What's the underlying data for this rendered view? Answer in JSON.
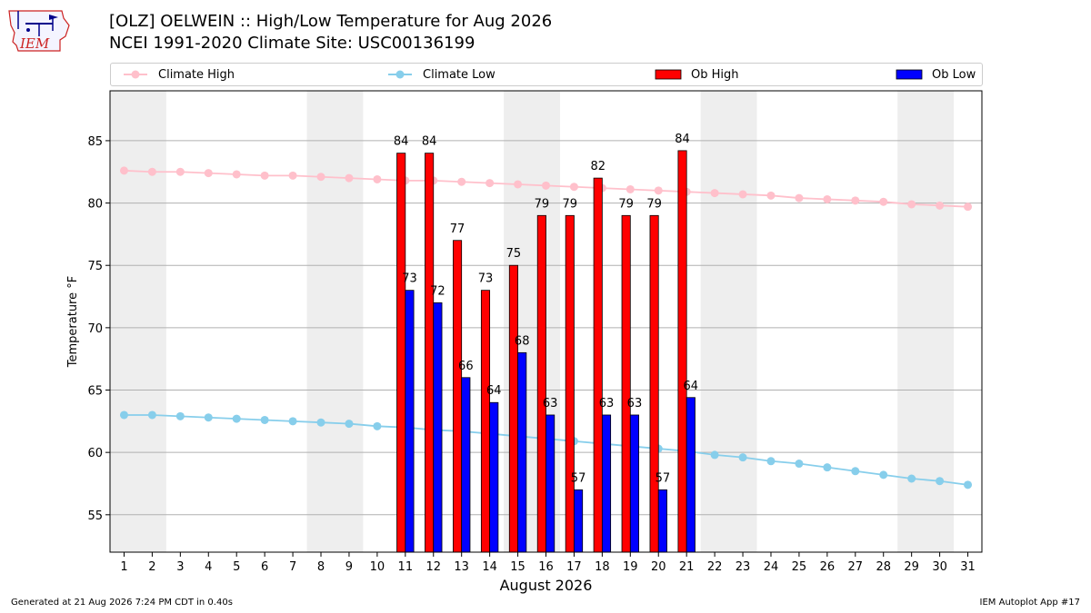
{
  "header": {
    "logo_text": "IEM",
    "title_line1": "[OLZ] OELWEIN :: High/Low Temperature for Aug 2026",
    "title_line2": "NCEI 1991-2020 Climate Site: USC00136199"
  },
  "legend": {
    "climate_high": "Climate High",
    "climate_low": "Climate Low",
    "ob_high": "Ob High",
    "ob_low": "Ob Low"
  },
  "colors": {
    "climate_high": "#ffc0cb",
    "climate_low": "#87ceeb",
    "ob_high": "#ff0000",
    "ob_low": "#0000ff",
    "weekend_shade": "#eeeeee",
    "grid": "#b0b0b0"
  },
  "footer": {
    "left": "Generated at 21 Aug 2026 7:24 PM CDT in 0.40s",
    "right": "IEM Autoplot App #17"
  },
  "chart_data": {
    "type": "bar",
    "xlabel": "August 2026",
    "ylabel": "Temperature °F",
    "xlim": [
      0.5,
      31.5
    ],
    "ylim": [
      52,
      89
    ],
    "yticks": [
      55,
      60,
      65,
      70,
      75,
      80,
      85
    ],
    "grid": true,
    "legend_position": "top",
    "shaded_day_ranges": [
      [
        1,
        2
      ],
      [
        8,
        9
      ],
      [
        15,
        16
      ],
      [
        22,
        23
      ],
      [
        29,
        30
      ]
    ],
    "days": [
      1,
      2,
      3,
      4,
      5,
      6,
      7,
      8,
      9,
      10,
      11,
      12,
      13,
      14,
      15,
      16,
      17,
      18,
      19,
      20,
      21,
      22,
      23,
      24,
      25,
      26,
      27,
      28,
      29,
      30,
      31
    ],
    "series": [
      {
        "name": "Climate High",
        "kind": "line",
        "values": [
          82.6,
          82.5,
          82.5,
          82.4,
          82.3,
          82.2,
          82.2,
          82.1,
          82.0,
          81.9,
          81.8,
          81.8,
          81.7,
          81.6,
          81.5,
          81.4,
          81.3,
          81.2,
          81.1,
          81.0,
          80.9,
          80.8,
          80.7,
          80.6,
          80.4,
          80.3,
          80.2,
          80.1,
          79.9,
          79.8,
          79.7
        ]
      },
      {
        "name": "Climate Low",
        "kind": "line",
        "values": [
          63.0,
          63.0,
          62.9,
          62.8,
          62.7,
          62.6,
          62.5,
          62.4,
          62.3,
          62.1,
          62.0,
          61.8,
          61.7,
          61.5,
          61.3,
          61.1,
          60.9,
          60.7,
          60.5,
          60.3,
          60.1,
          59.8,
          59.6,
          59.3,
          59.1,
          58.8,
          58.5,
          58.2,
          57.9,
          57.7,
          57.4
        ]
      },
      {
        "name": "Ob High",
        "kind": "bar",
        "days": [
          11,
          12,
          13,
          14,
          15,
          16,
          17,
          18,
          19,
          20,
          21
        ],
        "values": [
          84,
          84,
          77,
          73,
          75,
          79,
          79,
          82,
          79,
          79,
          84.2
        ],
        "labels": [
          "84",
          "84",
          "77",
          "73",
          "75",
          "79",
          "79",
          "82",
          "79",
          "79",
          "84"
        ]
      },
      {
        "name": "Ob Low",
        "kind": "bar",
        "days": [
          11,
          12,
          13,
          14,
          15,
          16,
          17,
          18,
          19,
          20,
          21
        ],
        "values": [
          73,
          72,
          66,
          64,
          68,
          63,
          57,
          63,
          63,
          57,
          64.4
        ],
        "labels": [
          "73",
          "72",
          "66",
          "64",
          "68",
          "63",
          "57",
          "63",
          "63",
          "57",
          "64"
        ]
      }
    ]
  }
}
